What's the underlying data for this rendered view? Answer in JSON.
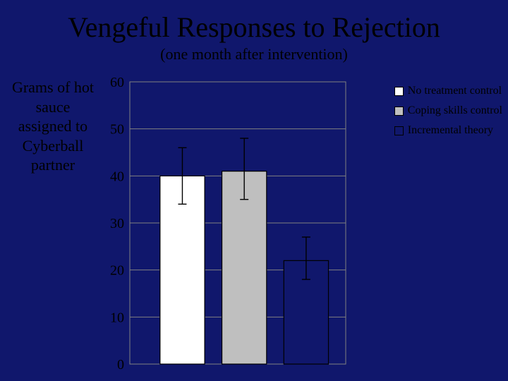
{
  "title": "Vengeful Responses to Rejection",
  "subtitle": "(one month after intervention)",
  "ylabel": "Grams of hot sauce assigned to Cyberball partner",
  "chart": {
    "type": "bar",
    "background_color": "#10176c",
    "plot_border_color": "#808080",
    "grid_color": "#808080",
    "ylim": [
      0,
      60
    ],
    "ytick_step": 10,
    "yticks": [
      0,
      10,
      20,
      30,
      40,
      50,
      60
    ],
    "ytick_fontsize": 20,
    "ytick_color": "#000000",
    "error_bar_color": "#000000",
    "error_cap_width": 12,
    "series": [
      {
        "name": "No treatment control",
        "label": "No treatment control",
        "value": 40,
        "err_low": 6,
        "err_high": 6,
        "fill": "#ffffff",
        "border": "#000000"
      },
      {
        "name": "Coping skills control",
        "label": "Coping skills control",
        "value": 41,
        "err_low": 6,
        "err_high": 7,
        "fill": "#bfbfbf",
        "border": "#000000"
      },
      {
        "name": "Incremental theory",
        "label": "Incremental theory",
        "value": 22,
        "err_low": 4,
        "err_high": 5,
        "fill": "#10176c",
        "border": "#000000"
      }
    ],
    "bar_gap_ratio": 0.08,
    "first_bar_offset_ratio": 0.14
  },
  "legend_title": null
}
